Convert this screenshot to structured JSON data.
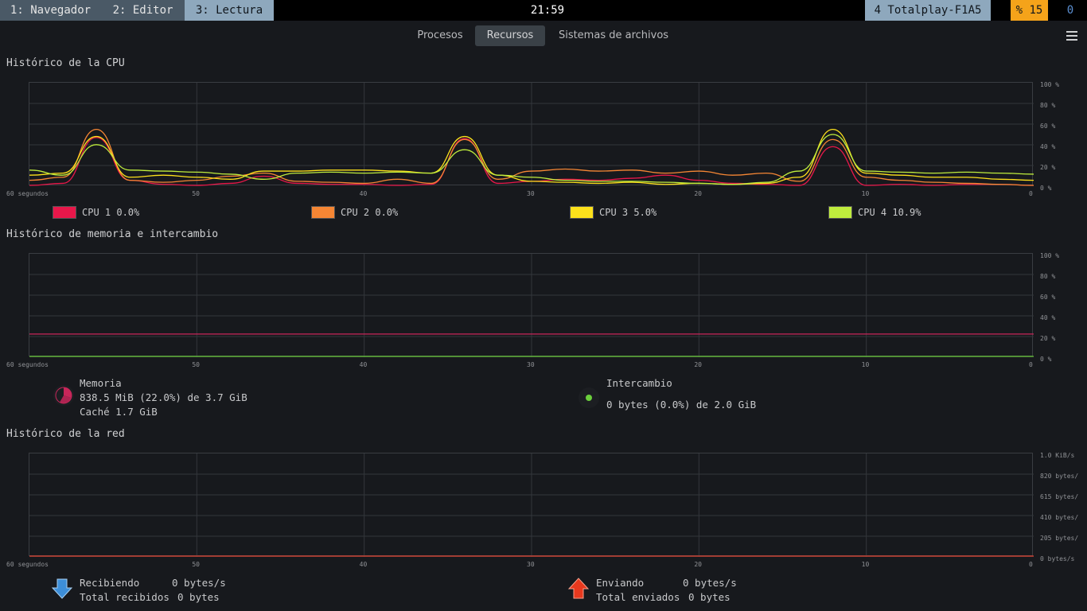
{
  "topbar": {
    "workspaces": [
      "1: Navegador",
      "2: Editor",
      "3: Lectura"
    ],
    "clock": "21:59",
    "wifi": "4 Totalplay-F1A5",
    "battery": "% 15",
    "notifications": "0"
  },
  "tabs": [
    "Procesos",
    "Recursos",
    "Sistemas de archivos"
  ],
  "cpu": {
    "title": "Histórico de la CPU",
    "x_ticks": [
      "60 segundos",
      "50",
      "40",
      "30",
      "20",
      "10",
      "0"
    ],
    "y_ticks": [
      "100 %",
      "80 %",
      "60 %",
      "40 %",
      "20 %",
      "0 %"
    ],
    "legend": [
      {
        "label": "CPU 1 0.0%",
        "color": "#e8174a"
      },
      {
        "label": "CPU 2 0.0%",
        "color": "#f58634"
      },
      {
        "label": "CPU 3 5.0%",
        "color": "#fde11b"
      },
      {
        "label": "CPU 4 10.9%",
        "color": "#bfec3d"
      }
    ]
  },
  "memory": {
    "title": "Histórico de memoria e intercambio",
    "x_ticks": [
      "60 segundos",
      "50",
      "40",
      "30",
      "20",
      "10",
      "0"
    ],
    "y_ticks": [
      "100 %",
      "80 %",
      "60 %",
      "40 %",
      "20 %",
      "0 %"
    ],
    "mem_label": "Memoria",
    "mem_value": "838.5 MiB (22.0%) de 3.7 GiB",
    "mem_cache": "Caché 1.7 GiB",
    "swap_label": "Intercambio",
    "swap_value": "0 bytes (0.0%) de 2.0 GiB",
    "mem_color": "#c8265a",
    "swap_color": "#6bcf3c"
  },
  "network": {
    "title": "Histórico de la red",
    "x_ticks": [
      "60 segundos",
      "50",
      "40",
      "30",
      "20",
      "10",
      "0"
    ],
    "y_ticks": [
      "1.0 KiB/s",
      "820 bytes/",
      "615 bytes/",
      "410 bytes/",
      "205 bytes/",
      "0 bytes/s"
    ],
    "recv_label": "Recibiendo",
    "recv_value": "0 bytes/s",
    "recv_total_label": "Total recibidos",
    "recv_total_value": "0 bytes",
    "send_label": "Enviando",
    "send_value": "0 bytes/s",
    "send_total_label": "Total enviados",
    "send_total_value": "0 bytes",
    "recv_color": "#3d8ed8",
    "send_color": "#e8391e"
  },
  "chart_data": [
    {
      "type": "line",
      "title": "Histórico de la CPU",
      "x": [
        60,
        58,
        56,
        54,
        52,
        50,
        48,
        46,
        44,
        42,
        40,
        38,
        36,
        34,
        32,
        30,
        28,
        26,
        24,
        22,
        20,
        18,
        16,
        14,
        12,
        10,
        8,
        6,
        4,
        2,
        0
      ],
      "ylim": [
        0,
        100
      ],
      "series": [
        {
          "name": "CPU 1 0.0%",
          "values": [
            0,
            2,
            47,
            5,
            1,
            0,
            2,
            9,
            2,
            1,
            1,
            0,
            1,
            46,
            2,
            4,
            6,
            5,
            7,
            10,
            5,
            2,
            1,
            0,
            38,
            0,
            1,
            0,
            1,
            1,
            0
          ]
        },
        {
          "name": "CPU 2 0.0%",
          "values": [
            5,
            8,
            55,
            5,
            3,
            5,
            9,
            12,
            4,
            3,
            2,
            6,
            2,
            45,
            6,
            14,
            16,
            14,
            15,
            12,
            14,
            10,
            12,
            4,
            45,
            8,
            5,
            3,
            2,
            1,
            0
          ]
        },
        {
          "name": "CPU 3 5.0%",
          "values": [
            10,
            12,
            48,
            8,
            10,
            8,
            6,
            14,
            14,
            15,
            15,
            14,
            12,
            48,
            10,
            4,
            3,
            2,
            3,
            1,
            2,
            1,
            2,
            8,
            55,
            12,
            10,
            8,
            8,
            6,
            5
          ]
        },
        {
          "name": "CPU 4 10.9%",
          "values": [
            15,
            10,
            40,
            15,
            14,
            13,
            11,
            6,
            12,
            13,
            12,
            13,
            12,
            35,
            10,
            8,
            5,
            4,
            4,
            3,
            2,
            1,
            3,
            14,
            50,
            14,
            13,
            12,
            13,
            12,
            11
          ]
        }
      ]
    },
    {
      "type": "line",
      "title": "Histórico de memoria e intercambio",
      "x": [
        60,
        0
      ],
      "ylim": [
        0,
        100
      ],
      "series": [
        {
          "name": "Memoria",
          "values": [
            22.0,
            22.0
          ]
        },
        {
          "name": "Intercambio",
          "values": [
            0.0,
            0.0
          ]
        }
      ]
    },
    {
      "type": "line",
      "title": "Histórico de la red",
      "x": [
        60,
        0
      ],
      "ylim": [
        0,
        1.0
      ],
      "series": [
        {
          "name": "Recibiendo",
          "values": [
            0,
            0
          ]
        },
        {
          "name": "Enviando",
          "values": [
            0,
            0
          ]
        }
      ]
    }
  ]
}
